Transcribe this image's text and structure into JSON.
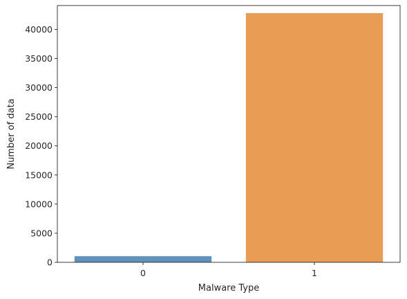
{
  "chart_data": {
    "type": "bar",
    "xlabel": "Malware Type",
    "ylabel": "Number of data",
    "categories": [
      "0",
      "1"
    ],
    "values": [
      1050,
      42800
    ],
    "ylim": [
      0,
      44100
    ],
    "yticks": [
      0,
      5000,
      10000,
      15000,
      20000,
      25000,
      30000,
      35000,
      40000
    ],
    "ytick_labels": [
      "0",
      "5000",
      "10000",
      "15000",
      "20000",
      "25000",
      "30000",
      "35000",
      "40000"
    ],
    "colors": [
      "#5f93bd",
      "#e99c54"
    ],
    "grid": false,
    "legend": "none"
  }
}
